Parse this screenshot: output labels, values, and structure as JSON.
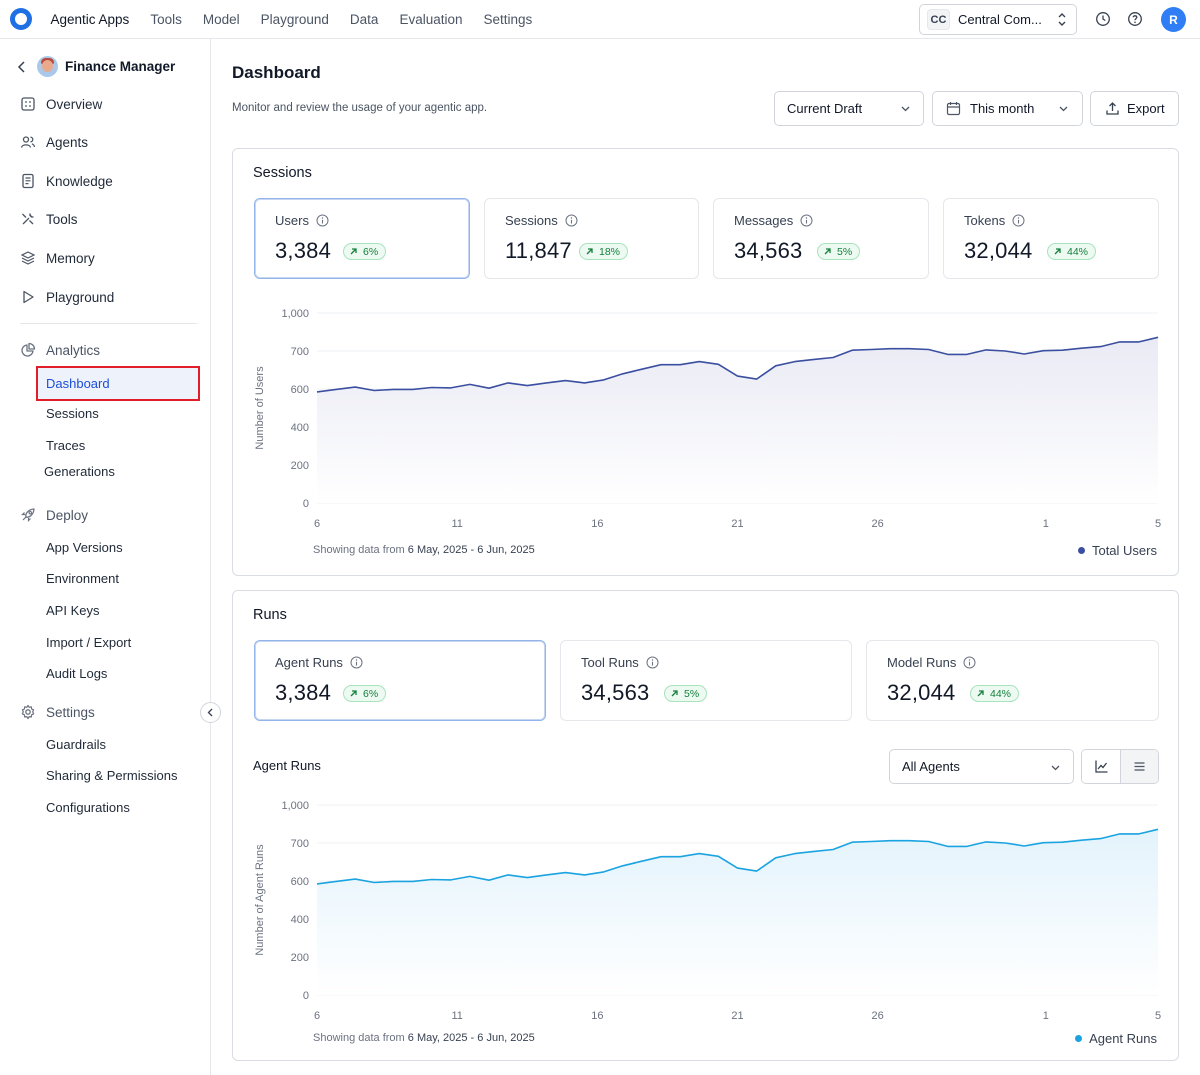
{
  "topbar": {
    "tabs": [
      "Agentic Apps",
      "Tools",
      "Model",
      "Playground",
      "Data",
      "Evaluation",
      "Settings"
    ],
    "active_tab": "Agentic Apps",
    "org_initials": "CC",
    "org_name": "Central Com...",
    "user_initial": "R"
  },
  "sidebar": {
    "app_name": "Finance Manager",
    "items": [
      {
        "label": "Overview",
        "icon": "grid-icon"
      },
      {
        "label": "Agents",
        "icon": "users-icon"
      },
      {
        "label": "Knowledge",
        "icon": "book-icon"
      },
      {
        "label": "Tools",
        "icon": "wrench-icon"
      },
      {
        "label": "Memory",
        "icon": "layers-icon"
      },
      {
        "label": "Playground",
        "icon": "play-icon"
      }
    ],
    "analytics": {
      "label": "Analytics",
      "items": [
        "Dashboard",
        "Sessions",
        "Traces",
        "Generations"
      ],
      "active": "Dashboard"
    },
    "deploy": {
      "label": "Deploy",
      "items": [
        "App Versions",
        "Environment",
        "API Keys",
        "Import / Export",
        "Audit Logs"
      ]
    },
    "settings": {
      "label": "Settings",
      "items": [
        "Guardrails",
        "Sharing & Permissions",
        "Configurations"
      ]
    }
  },
  "header": {
    "title": "Dashboard",
    "subtitle": "Monitor and review the usage of your agentic app.",
    "version_select": "Current Draft",
    "date_select": "This month",
    "export_label": "Export"
  },
  "sessions": {
    "title": "Sessions",
    "stats": [
      {
        "label": "Users",
        "value": "3,384",
        "change": "6%"
      },
      {
        "label": "Sessions",
        "value": "11,847",
        "change": "18%"
      },
      {
        "label": "Messages",
        "value": "34,563",
        "change": "5%"
      },
      {
        "label": "Tokens",
        "value": "32,044",
        "change": "44%"
      }
    ],
    "showing_prefix": "Showing data from",
    "showing_range": "6 May, 2025 - 6 Jun, 2025",
    "legend": "Total Users",
    "color": "#3b4fa0"
  },
  "runs": {
    "title": "Runs",
    "stats": [
      {
        "label": "Agent Runs",
        "value": "3,384",
        "change": "6%"
      },
      {
        "label": "Tool Runs",
        "value": "34,563",
        "change": "5%"
      },
      {
        "label": "Model Runs",
        "value": "32,044",
        "change": "44%"
      }
    ],
    "chart_title": "Agent Runs",
    "agent_select": "All Agents",
    "showing_prefix": "Showing data from",
    "showing_range": "6 May, 2025 - 6 Jun, 2025",
    "legend": "Agent Runs",
    "color": "#1aa3e0"
  },
  "chart_data": [
    {
      "type": "area",
      "ylabel": "Number of Users",
      "ylim": [
        0,
        1000
      ],
      "y_ticks": [
        "0",
        "200",
        "400",
        "600",
        "700",
        "1,000"
      ],
      "x_ticks": [
        "6",
        "11",
        "16",
        "21",
        "26",
        "1",
        "5"
      ],
      "series": [
        {
          "name": "Total Users",
          "values": [
            585,
            598,
            605,
            592,
            598,
            598,
            604,
            603,
            612,
            602,
            616,
            609,
            616,
            622,
            616,
            624,
            640,
            652,
            664,
            664,
            672,
            665,
            634,
            626,
            661,
            672,
            678,
            683,
            706,
            712,
            718,
            718,
            712,
            691,
            691,
            709,
            700,
            692,
            702,
            706,
            722,
            735,
            772,
            772,
            808
          ]
        }
      ],
      "grid": true
    },
    {
      "type": "area",
      "ylabel": "Number of Agent Runs",
      "ylim": [
        0,
        1000
      ],
      "y_ticks": [
        "0",
        "200",
        "400",
        "600",
        "700",
        "1,000"
      ],
      "x_ticks": [
        "6",
        "11",
        "16",
        "21",
        "26",
        "1",
        "5"
      ],
      "series": [
        {
          "name": "Agent Runs",
          "values": [
            585,
            598,
            605,
            592,
            598,
            598,
            604,
            603,
            612,
            602,
            616,
            609,
            616,
            622,
            616,
            624,
            640,
            652,
            664,
            664,
            672,
            665,
            634,
            626,
            661,
            672,
            678,
            683,
            706,
            712,
            718,
            718,
            712,
            691,
            691,
            709,
            700,
            692,
            702,
            706,
            722,
            735,
            772,
            772,
            808
          ]
        }
      ],
      "grid": true
    }
  ]
}
